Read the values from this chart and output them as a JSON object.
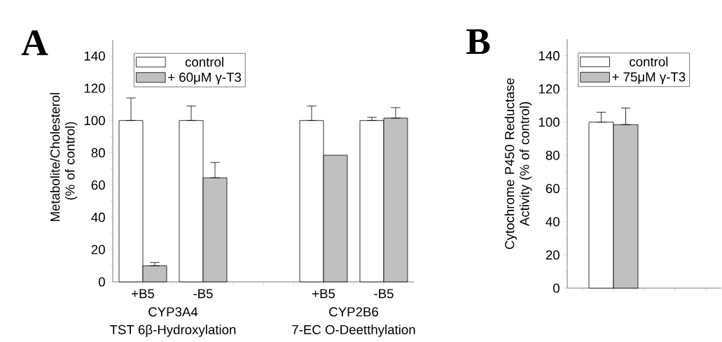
{
  "chart_data": [
    {
      "type": "bar",
      "title": "A",
      "ylabel": "Metabolite/Cholesterol (% of control)",
      "categories": [
        "+B5",
        "-B5",
        null,
        "+B5",
        "-B5"
      ],
      "series": [
        {
          "name": "control",
          "color": "#ffffff",
          "values": [
            100,
            100,
            null,
            100,
            100
          ],
          "errors": [
            [
              100,
              114
            ],
            [
              100,
              109
            ],
            null,
            [
              100,
              109
            ],
            [
              100,
              102
            ]
          ]
        },
        {
          "name": "+ 60μM γ-T3",
          "color": "#c0c0c0",
          "values": [
            10,
            64.5,
            null,
            78.5,
            101.5
          ],
          "errors": [
            [
              10,
              12
            ],
            [
              64.5,
              74
            ],
            null,
            null,
            [
              101.5,
              108
            ]
          ]
        }
      ],
      "ylim": [
        0,
        150
      ],
      "yticks": [
        0,
        20,
        40,
        60,
        80,
        100,
        120,
        140
      ],
      "legend": "top left",
      "annotations": [
        "CYP3A4",
        "TST 6β-Hydroxylation",
        "CYP2B6",
        "7-EC O-Deetthylation"
      ]
    },
    {
      "type": "bar",
      "title": "B",
      "ylabel": "Cytochrome P450 Reductase Activity (% of control)",
      "categories": [
        null,
        null,
        null,
        null,
        null
      ],
      "series": [
        {
          "name": "control",
          "color": "#ffffff",
          "values": [
            null,
            100,
            null,
            null,
            null
          ],
          "errors": [
            null,
            [
              100,
              106
            ],
            null,
            null,
            null
          ]
        },
        {
          "name": "+ 75μM γ-T3",
          "color": "#c0c0c0",
          "values": [
            null,
            98.5,
            null,
            null,
            null
          ],
          "errors": [
            null,
            [
              98.5,
              108.5
            ],
            null,
            null,
            null
          ]
        }
      ],
      "ylim": [
        0,
        150
      ],
      "yticks": [
        0,
        20,
        40,
        60,
        80,
        100,
        120,
        140
      ],
      "legend": "top left"
    }
  ]
}
